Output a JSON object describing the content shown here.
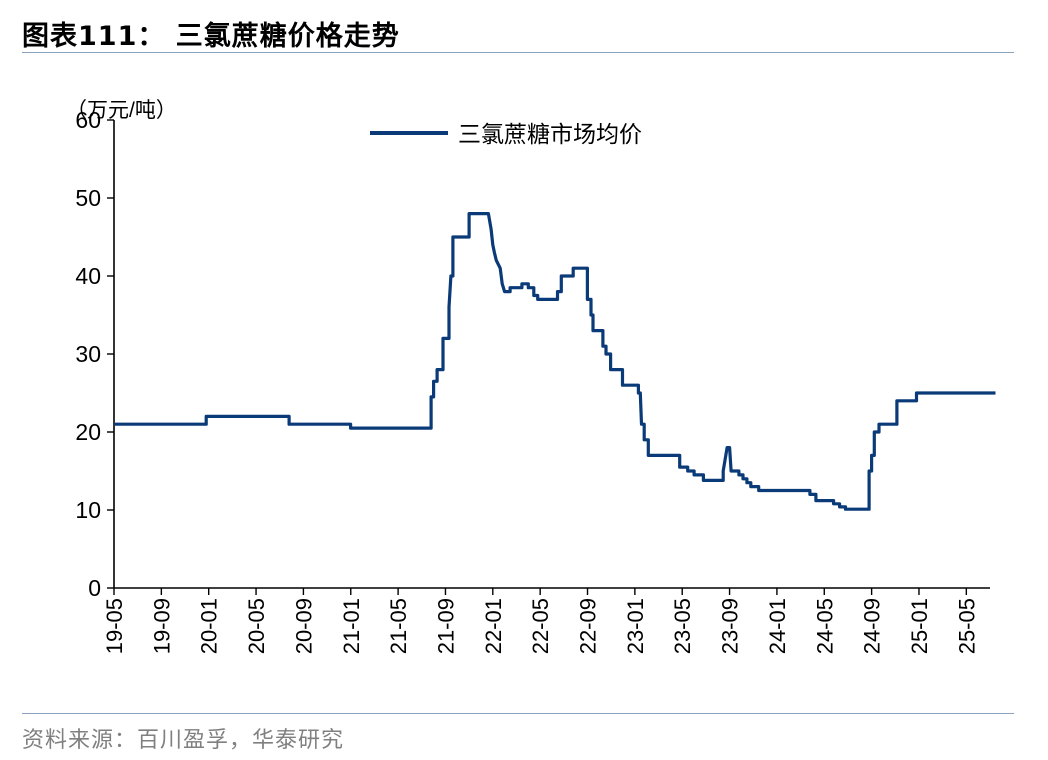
{
  "header": {
    "title": "图表111：  三氯蔗糖价格走势"
  },
  "footer": {
    "source": "资料来源：百川盈孚，华泰研究"
  },
  "colors": {
    "line": "#0b3a78",
    "axis": "#000000",
    "rule": "#8aa4bf"
  },
  "chart_data": {
    "type": "line",
    "title": "",
    "y_unit_label": "（万元/吨）",
    "ylim": [
      0,
      60
    ],
    "y_ticks": [
      0,
      10,
      20,
      30,
      40,
      50,
      60
    ],
    "x_range": [
      "2019-05",
      "2025-07"
    ],
    "x_ticks": [
      "19-05",
      "19-09",
      "20-01",
      "20-05",
      "20-09",
      "21-01",
      "21-05",
      "21-09",
      "22-01",
      "22-05",
      "22-09",
      "23-01",
      "23-05",
      "23-09",
      "24-01",
      "24-05",
      "24-09",
      "25-01",
      "25-05"
    ],
    "grid": false,
    "legend": "top-center",
    "series": [
      {
        "name": "三氯蔗糖市场均价",
        "points": [
          [
            "2019-05-01",
            21
          ],
          [
            "2019-12-25",
            21
          ],
          [
            "2019-12-25",
            22
          ],
          [
            "2020-07-25",
            22
          ],
          [
            "2020-07-25",
            21
          ],
          [
            "2020-12-31",
            21
          ],
          [
            "2020-12-31",
            20.5
          ],
          [
            "2021-07-25",
            20.5
          ],
          [
            "2021-07-25",
            24.5
          ],
          [
            "2021-08-01",
            24.5
          ],
          [
            "2021-08-01",
            26.5
          ],
          [
            "2021-08-10",
            26.5
          ],
          [
            "2021-08-10",
            28
          ],
          [
            "2021-08-25",
            28
          ],
          [
            "2021-08-25",
            32
          ],
          [
            "2021-09-10",
            32
          ],
          [
            "2021-09-10",
            36
          ],
          [
            "2021-09-15",
            40
          ],
          [
            "2021-09-20",
            40
          ],
          [
            "2021-09-20",
            45
          ],
          [
            "2021-11-01",
            45
          ],
          [
            "2021-11-01",
            48
          ],
          [
            "2021-12-20",
            48
          ],
          [
            "2021-12-27",
            46
          ],
          [
            "2022-01-01",
            44
          ],
          [
            "2022-01-05",
            43
          ],
          [
            "2022-01-10",
            42
          ],
          [
            "2022-01-20",
            41
          ],
          [
            "2022-01-25",
            39
          ],
          [
            "2022-02-01",
            38
          ],
          [
            "2022-02-15",
            38
          ],
          [
            "2022-02-15",
            38.5
          ],
          [
            "2022-03-15",
            38.5
          ],
          [
            "2022-03-15",
            39
          ],
          [
            "2022-04-01",
            39
          ],
          [
            "2022-04-01",
            38.5
          ],
          [
            "2022-04-15",
            38.5
          ],
          [
            "2022-04-15",
            37.5
          ],
          [
            "2022-04-25",
            37.5
          ],
          [
            "2022-04-25",
            37
          ],
          [
            "2022-06-15",
            37
          ],
          [
            "2022-06-15",
            38
          ],
          [
            "2022-06-25",
            38
          ],
          [
            "2022-06-25",
            40
          ],
          [
            "2022-07-25",
            40
          ],
          [
            "2022-07-25",
            41
          ],
          [
            "2022-08-31",
            41
          ],
          [
            "2022-08-31",
            37
          ],
          [
            "2022-09-10",
            37
          ],
          [
            "2022-09-10",
            35
          ],
          [
            "2022-09-15",
            35
          ],
          [
            "2022-09-15",
            33
          ],
          [
            "2022-10-10",
            33
          ],
          [
            "2022-10-10",
            31
          ],
          [
            "2022-10-18",
            31
          ],
          [
            "2022-10-18",
            30
          ],
          [
            "2022-10-30",
            30
          ],
          [
            "2022-10-30",
            28
          ],
          [
            "2022-11-30",
            28
          ],
          [
            "2022-11-30",
            26
          ],
          [
            "2023-01-10",
            26
          ],
          [
            "2023-01-10",
            25
          ],
          [
            "2023-01-15",
            25
          ],
          [
            "2023-01-18",
            21
          ],
          [
            "2023-01-25",
            21
          ],
          [
            "2023-01-25",
            19
          ],
          [
            "2023-02-05",
            19
          ],
          [
            "2023-02-05",
            17
          ],
          [
            "2023-04-25",
            17
          ],
          [
            "2023-04-25",
            15.5
          ],
          [
            "2023-05-15",
            15.5
          ],
          [
            "2023-05-15",
            15
          ],
          [
            "2023-06-01",
            15
          ],
          [
            "2023-06-01",
            14.5
          ],
          [
            "2023-06-25",
            14.5
          ],
          [
            "2023-06-25",
            13.8
          ],
          [
            "2023-08-15",
            13.8
          ],
          [
            "2023-08-15",
            15
          ],
          [
            "2023-08-25",
            18
          ],
          [
            "2023-09-01",
            18
          ],
          [
            "2023-09-05",
            15
          ],
          [
            "2023-09-25",
            15
          ],
          [
            "2023-09-25",
            14.5
          ],
          [
            "2023-10-05",
            14.5
          ],
          [
            "2023-10-05",
            14
          ],
          [
            "2023-10-15",
            14
          ],
          [
            "2023-10-15",
            13.5
          ],
          [
            "2023-10-25",
            13.5
          ],
          [
            "2023-10-25",
            13
          ],
          [
            "2023-11-15",
            13
          ],
          [
            "2023-11-15",
            12.5
          ],
          [
            "2024-03-25",
            12.5
          ],
          [
            "2024-03-25",
            12
          ],
          [
            "2024-04-10",
            12
          ],
          [
            "2024-04-10",
            11.2
          ],
          [
            "2024-05-25",
            11.2
          ],
          [
            "2024-05-25",
            10.8
          ],
          [
            "2024-06-10",
            10.8
          ],
          [
            "2024-06-10",
            10.4
          ],
          [
            "2024-06-25",
            10.4
          ],
          [
            "2024-06-25",
            10.1
          ],
          [
            "2024-08-25",
            10.1
          ],
          [
            "2024-08-25",
            15
          ],
          [
            "2024-09-01",
            15
          ],
          [
            "2024-09-01",
            17
          ],
          [
            "2024-09-08",
            17
          ],
          [
            "2024-09-08",
            20
          ],
          [
            "2024-09-20",
            20
          ],
          [
            "2024-09-20",
            21
          ],
          [
            "2024-11-05",
            21
          ],
          [
            "2024-11-05",
            24
          ],
          [
            "2024-12-25",
            24
          ],
          [
            "2024-12-25",
            25
          ],
          [
            "2025-07-15",
            25
          ]
        ]
      }
    ]
  }
}
